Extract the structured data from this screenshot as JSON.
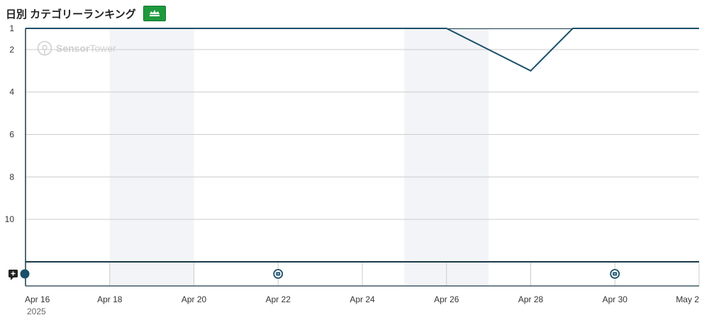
{
  "header": {
    "title": "日別 カテゴリーランキング",
    "badge_icon": "game-controller-icon"
  },
  "watermark": {
    "brand_bold": "Sensor",
    "brand_light": "Tower",
    "icon": "sensor-tower-logo-icon"
  },
  "colors": {
    "line": "#1a5068",
    "weekend_band": "#f2f4f7",
    "grid": "#cccccc",
    "axis": "#1a3a4a",
    "marker": "#1a5068",
    "badge": "#1e9a3e"
  },
  "chart_data": {
    "type": "line",
    "title": "日別 カテゴリーランキング",
    "xlabel": "",
    "ylabel": "",
    "y_inverted": true,
    "ylim": [
      1,
      12
    ],
    "y_ticks": [
      1,
      2,
      4,
      6,
      8,
      10
    ],
    "x_range": [
      "2025-04-16",
      "2025-05-02"
    ],
    "x_ticks": [
      {
        "date": "2025-04-16",
        "label": "Apr 16"
      },
      {
        "date": "2025-04-18",
        "label": "Apr 18"
      },
      {
        "date": "2025-04-20",
        "label": "Apr 20"
      },
      {
        "date": "2025-04-22",
        "label": "Apr 22"
      },
      {
        "date": "2025-04-24",
        "label": "Apr 24"
      },
      {
        "date": "2025-04-26",
        "label": "Apr 26"
      },
      {
        "date": "2025-04-28",
        "label": "Apr 28"
      },
      {
        "date": "2025-04-30",
        "label": "Apr 30"
      },
      {
        "date": "2025-05-02",
        "label": "May 2"
      }
    ],
    "year_label": "2025",
    "weekend_bands": [
      [
        "2025-04-18",
        "2025-04-20"
      ],
      [
        "2025-04-25",
        "2025-04-27"
      ]
    ],
    "grid": true,
    "series": [
      {
        "points": [
          {
            "x": "2025-04-16",
            "y": 1
          },
          {
            "x": "2025-04-17",
            "y": 1
          },
          {
            "x": "2025-04-18",
            "y": 1
          },
          {
            "x": "2025-04-19",
            "y": 1
          },
          {
            "x": "2025-04-20",
            "y": 1
          },
          {
            "x": "2025-04-21",
            "y": 1
          },
          {
            "x": "2025-04-22",
            "y": 1
          },
          {
            "x": "2025-04-23",
            "y": 1
          },
          {
            "x": "2025-04-24",
            "y": 1
          },
          {
            "x": "2025-04-25",
            "y": 1
          },
          {
            "x": "2025-04-26",
            "y": 1
          },
          {
            "x": "2025-04-27",
            "y": 2
          },
          {
            "x": "2025-04-28",
            "y": 3
          },
          {
            "x": "2025-04-29",
            "y": 1
          },
          {
            "x": "2025-04-30",
            "y": 1
          },
          {
            "x": "2025-05-01",
            "y": 1
          },
          {
            "x": "2025-05-02",
            "y": 1
          }
        ]
      }
    ],
    "event_markers": [
      {
        "x": "2025-04-16",
        "kind": "dot",
        "icon": "circle-marker-icon"
      },
      {
        "x": "2025-04-22",
        "kind": "update",
        "icon": "app-update-icon"
      },
      {
        "x": "2025-04-30",
        "kind": "update",
        "icon": "app-update-icon"
      }
    ],
    "annotation_icon": "add-comment-icon"
  }
}
